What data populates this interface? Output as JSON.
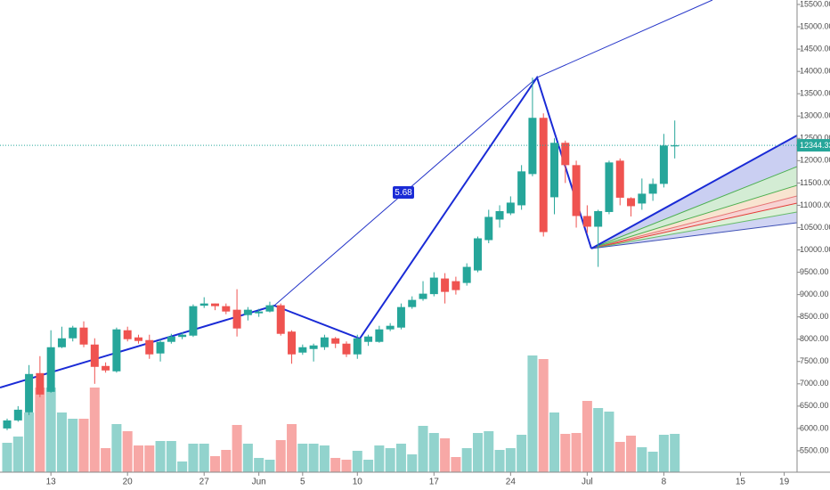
{
  "chart_data": {
    "type": "candlestick",
    "x": [
      "05-09",
      "05-10",
      "05-11",
      "05-12",
      "05-13",
      "05-14",
      "05-15",
      "05-16",
      "05-17",
      "05-18",
      "05-19",
      "05-20",
      "05-21",
      "05-22",
      "05-23",
      "05-24",
      "05-25",
      "05-26",
      "05-27",
      "05-28",
      "05-29",
      "05-30",
      "05-31",
      "06-01",
      "06-02",
      "06-03",
      "06-04",
      "06-05",
      "06-06",
      "06-07",
      "06-08",
      "06-09",
      "06-10",
      "06-11",
      "06-12",
      "06-13",
      "06-14",
      "06-15",
      "06-16",
      "06-17",
      "06-18",
      "06-19",
      "06-20",
      "06-21",
      "06-22",
      "06-23",
      "06-24",
      "06-25",
      "06-26",
      "06-27",
      "06-28",
      "06-29",
      "06-30",
      "07-01",
      "07-02",
      "07-03",
      "07-04",
      "07-05",
      "07-06",
      "07-07",
      "07-08",
      "07-09"
    ],
    "open": [
      6000,
      6180,
      6360,
      7240,
      6820,
      7820,
      8020,
      8260,
      7880,
      7400,
      7280,
      8200,
      8040,
      7980,
      7680,
      7940,
      8050,
      8080,
      8750,
      8800,
      8740,
      8660,
      8540,
      8580,
      8620,
      8760,
      8170,
      7700,
      7780,
      7820,
      8020,
      7900,
      7660,
      7940,
      7940,
      8220,
      8260,
      8720,
      8900,
      9010,
      9360,
      9300,
      9260,
      9540,
      10220,
      10680,
      10820,
      11000,
      11700,
      12960,
      11180,
      12400,
      11900,
      10760,
      10520,
      10850,
      12000,
      11160,
      11040,
      11260,
      11480,
      12320
    ],
    "high": [
      6220,
      6500,
      7420,
      7620,
      8200,
      8280,
      8300,
      8400,
      8020,
      7480,
      8260,
      8280,
      8100,
      8100,
      8000,
      8120,
      8150,
      8780,
      8940,
      8800,
      8800,
      9120,
      8720,
      8680,
      8840,
      8800,
      8200,
      7880,
      7900,
      8100,
      8050,
      7950,
      8100,
      8100,
      8300,
      8360,
      8800,
      8960,
      9300,
      9500,
      9480,
      9400,
      9700,
      10300,
      10900,
      11000,
      11200,
      11900,
      13860,
      13060,
      12500,
      12450,
      12000,
      11000,
      10900,
      12000,
      12050,
      11180,
      11600,
      11600,
      12600,
      12900
    ],
    "low": [
      5960,
      6150,
      6300,
      6700,
      6800,
      7800,
      7950,
      7820,
      7000,
      7250,
      7250,
      7950,
      7900,
      7560,
      7500,
      7900,
      8000,
      8050,
      8700,
      8650,
      8560,
      8060,
      8420,
      8500,
      8600,
      8080,
      7450,
      7650,
      7500,
      7760,
      7800,
      7600,
      7560,
      7850,
      7920,
      8180,
      8220,
      8680,
      8860,
      8960,
      8800,
      9000,
      9200,
      9500,
      10150,
      10500,
      10780,
      10900,
      11650,
      10300,
      10800,
      11500,
      10500,
      10380,
      9620,
      10800,
      11000,
      10750,
      10900,
      11100,
      11400,
      12050
    ],
    "close": [
      6180,
      6420,
      7220,
      6760,
      7820,
      8020,
      8260,
      7880,
      7380,
      7300,
      8220,
      8000,
      7960,
      7660,
      7940,
      8060,
      8100,
      8740,
      8800,
      8740,
      8620,
      8240,
      8660,
      8620,
      8760,
      8120,
      7660,
      7820,
      7860,
      8040,
      7900,
      7660,
      8020,
      8060,
      8220,
      8300,
      8720,
      8880,
      9020,
      9380,
      9060,
      9100,
      9620,
      10260,
      10740,
      10870,
      11060,
      11760,
      12960,
      10400,
      12400,
      11900,
      10760,
      10520,
      10870,
      11960,
      11170,
      10980,
      11260,
      11480,
      12340,
      12344.33
    ],
    "volume": [
      33,
      40,
      67,
      95,
      95,
      67,
      60,
      60,
      95,
      27,
      54,
      46,
      30,
      30,
      35,
      35,
      12,
      32,
      32,
      18,
      25,
      53,
      32,
      16,
      14,
      36,
      54,
      32,
      32,
      30,
      16,
      14,
      24,
      14,
      30,
      27,
      32,
      20,
      52,
      44,
      38,
      17,
      27,
      44,
      46,
      25,
      27,
      42,
      131,
      127,
      67,
      43,
      44,
      80,
      72,
      68,
      34,
      41,
      28,
      23,
      42,
      43
    ],
    "up_color": "#26a69a",
    "down_color": "#ef5350",
    "volume_up_color": "#92d3cd",
    "volume_down_color": "#f7a8a6",
    "ylim": [
      5020,
      15600
    ],
    "yticks": [
      {
        "value": 5500,
        "label": "5500.00"
      },
      {
        "value": 6000,
        "label": "6000.00"
      },
      {
        "value": 6500,
        "label": "6500.00"
      },
      {
        "value": 7000,
        "label": "7000.00"
      },
      {
        "value": 7500,
        "label": "7500.00"
      },
      {
        "value": 8000,
        "label": "8000.00"
      },
      {
        "value": 8500,
        "label": "8500.00"
      },
      {
        "value": 9000,
        "label": "9000.00"
      },
      {
        "value": 9500,
        "label": "9500.00"
      },
      {
        "value": 10000,
        "label": "10000.00"
      },
      {
        "value": 10500,
        "label": "10500.00"
      },
      {
        "value": 11000,
        "label": "11000.00"
      },
      {
        "value": 11500,
        "label": "11500.00"
      },
      {
        "value": 12000,
        "label": "12000.00"
      },
      {
        "value": 12500,
        "label": "12500.00"
      },
      {
        "value": 13000,
        "label": "13000.00"
      },
      {
        "value": 13500,
        "label": "13500.00"
      },
      {
        "value": 14000,
        "label": "14000.00"
      },
      {
        "value": 14500,
        "label": "14500.00"
      },
      {
        "value": 15000,
        "label": "15000.00"
      },
      {
        "value": 15500,
        "label": "15500.00"
      }
    ],
    "xticks": [
      {
        "value": "05-13",
        "label": "13"
      },
      {
        "value": "05-20",
        "label": "20"
      },
      {
        "value": "05-27",
        "label": "27"
      },
      {
        "value": "06-01",
        "label": "Jun"
      },
      {
        "value": "06-05",
        "label": "5"
      },
      {
        "value": "06-10",
        "label": "10"
      },
      {
        "value": "06-17",
        "label": "17"
      },
      {
        "value": "06-24",
        "label": "24"
      },
      {
        "value": "07-01",
        "label": "Jul"
      },
      {
        "value": "07-08",
        "label": "8"
      },
      {
        "value": "07-15",
        "label": "15"
      },
      {
        "value": "07-19",
        "label": "19"
      }
    ],
    "last_price": 12344.33,
    "annotations": [
      {
        "text": "5.68"
      }
    ]
  }
}
